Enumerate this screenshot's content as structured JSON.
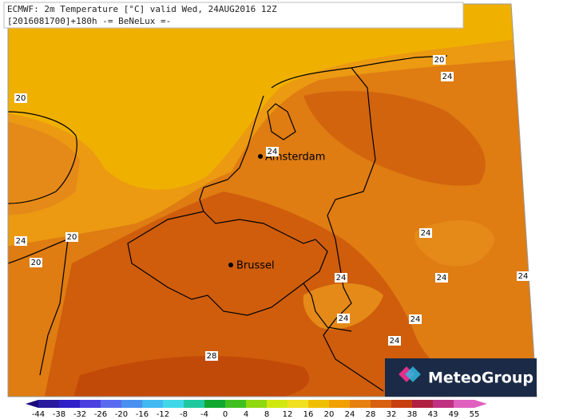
{
  "header": {
    "title": "ECMWF: 2m Temperature [°C] valid Wed, 24AUG2016 12Z",
    "subtitle": "[2016081700]+180h  -= BeNeLux =-"
  },
  "cities": [
    {
      "name": "Amsterdam"
    },
    {
      "name": "Brussel"
    }
  ],
  "contour_labels": [
    20,
    24,
    20,
    24,
    24,
    20,
    24,
    20,
    24,
    24,
    24,
    24,
    24,
    24,
    28
  ],
  "colorbar": {
    "labels": [
      -44,
      -38,
      -32,
      -26,
      -20,
      -16,
      -12,
      -8,
      -4,
      0,
      4,
      8,
      12,
      16,
      20,
      24,
      28,
      32,
      38,
      43,
      49,
      55
    ],
    "colors": [
      "#1a0a7a",
      "#2a1aa0",
      "#3020c8",
      "#4a40e0",
      "#5a6af0",
      "#4a90f0",
      "#40b8f0",
      "#40d8e8",
      "#20c8a0",
      "#10a830",
      "#40c020",
      "#90d810",
      "#d0e810",
      "#f0e020",
      "#f0c000",
      "#f0a000",
      "#e88010",
      "#d86010",
      "#c84010",
      "#b02040",
      "#c03080",
      "#e060c0"
    ]
  },
  "logo": {
    "text": "MeteoGroup"
  }
}
